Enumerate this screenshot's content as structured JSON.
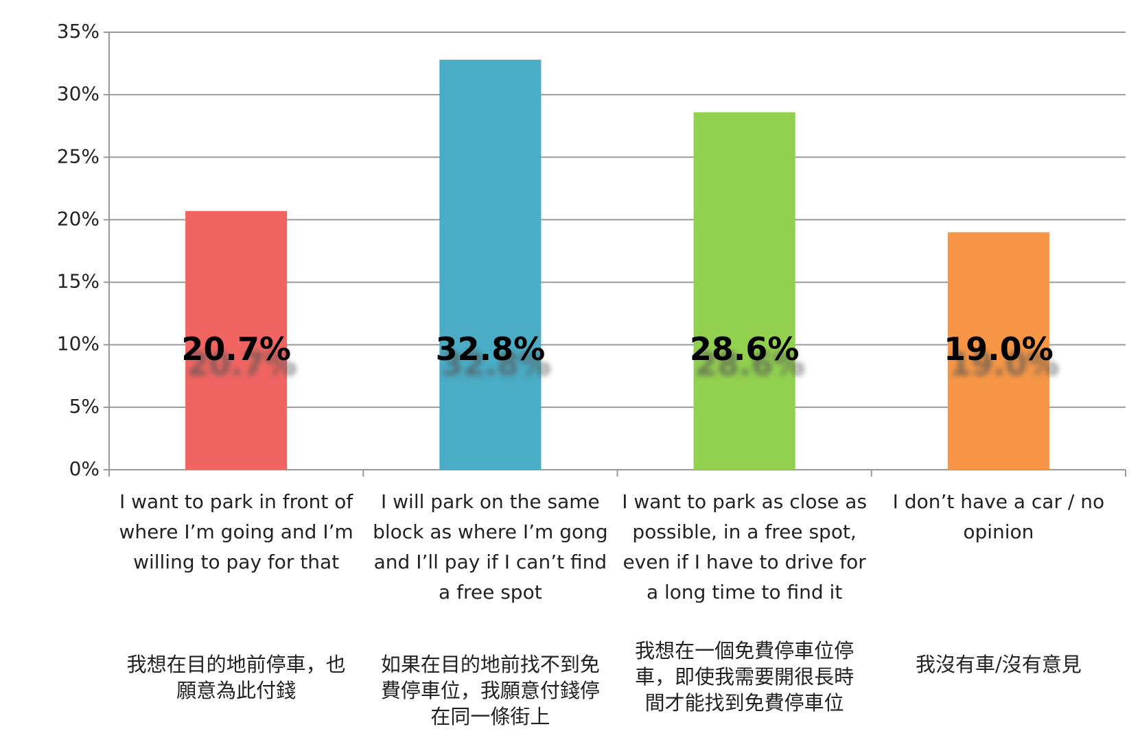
{
  "chart_data": {
    "type": "bar",
    "categories": [
      "I want to park in front of where I’m going and I’m willing to pay for that",
      "I will park on the same block as where I’m gong and I’ll pay if I can’t find a free spot",
      "I want to park as close as possible, in a free spot, even if I have to drive for a long time to find it",
      "I don’t have a car / no opinion"
    ],
    "categories_zh": [
      "我想在目的地前停車，也願意為此付錢",
      "如果在目的地前找不到免費停車位，我願意付錢停在同一條街上",
      "我想在一個免費停車位停車，即使我需要開很長時間才能找到免費停車位",
      "我沒有車/沒有意見"
    ],
    "values": [
      20.7,
      32.8,
      28.6,
      19.0
    ],
    "value_labels": [
      "20.7%",
      "32.8%",
      "28.6%",
      "19.0%"
    ],
    "colors": [
      "#f06562",
      "#4aacc5",
      "#92d050",
      "#f79646"
    ],
    "ylim": [
      0,
      35
    ],
    "yticks": [
      {
        "value": 0,
        "label": "0%"
      },
      {
        "value": 5,
        "label": "5%"
      },
      {
        "value": 10,
        "label": "10%"
      },
      {
        "value": 15,
        "label": "15%"
      },
      {
        "value": 20,
        "label": "20%"
      },
      {
        "value": 25,
        "label": "25%"
      },
      {
        "value": 30,
        "label": "30%"
      },
      {
        "value": 35,
        "label": "35%"
      }
    ],
    "grid": true
  }
}
